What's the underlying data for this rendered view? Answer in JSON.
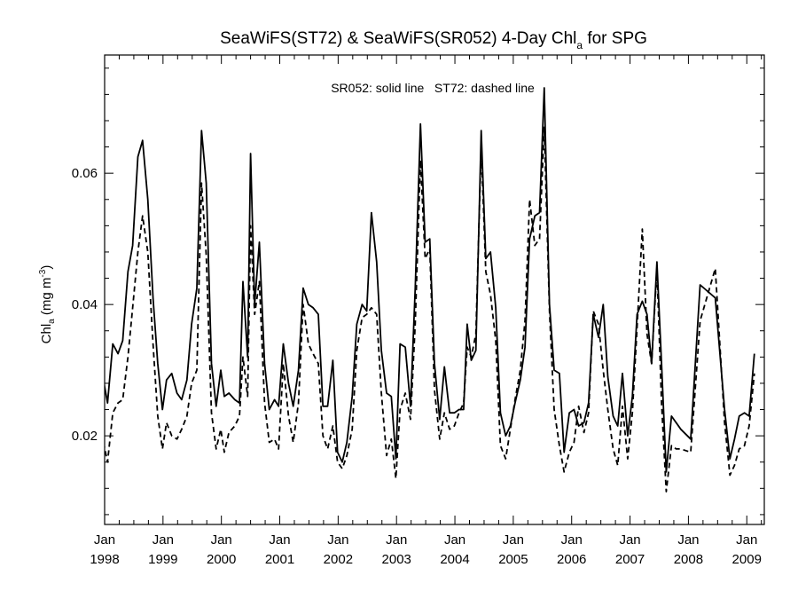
{
  "chart_data": {
    "type": "line",
    "title_main": "SeaWiFS(ST72) & SeaWiFS(SR052) 4-Day Chl",
    "title_sub": "a",
    "title_end": " for SPG",
    "ylabel_main": "Chl",
    "ylabel_sub": "a",
    "ylabel_unit_pre": " (mg m",
    "ylabel_unit_sup": "-3",
    "ylabel_unit_post": ")",
    "annotation": "SR052: solid line   ST72: dashed line",
    "xlim": [
      1998.0,
      2009.3
    ],
    "ylim": [
      0.0065,
      0.078
    ],
    "y_ticks": [
      0.02,
      0.04,
      0.06
    ],
    "y_tick_labels": [
      "0.02",
      "0.04",
      "0.06"
    ],
    "x_ticks": [
      {
        "value": 1998,
        "month": "Jan",
        "year": "1998"
      },
      {
        "value": 1999,
        "month": "Jan",
        "year": "1999"
      },
      {
        "value": 2000,
        "month": "Jan",
        "year": "2000"
      },
      {
        "value": 2001,
        "month": "Jan",
        "year": "2001"
      },
      {
        "value": 2002,
        "month": "Jan",
        "year": "2002"
      },
      {
        "value": 2003,
        "month": "Jan",
        "year": "2003"
      },
      {
        "value": 2004,
        "month": "Jan",
        "year": "2004"
      },
      {
        "value": 2005,
        "month": "Jan",
        "year": "2005"
      },
      {
        "value": 2006,
        "month": "Jan",
        "year": "2006"
      },
      {
        "value": 2007,
        "month": "Jan",
        "year": "2007"
      },
      {
        "value": 2008,
        "month": "Jan",
        "year": "2008"
      },
      {
        "value": 2009,
        "month": "Jan",
        "year": "2009"
      }
    ],
    "series": [
      {
        "name": "SR052",
        "style": "solid",
        "color": "#000000",
        "points": [
          [
            1997.98,
            0.0285
          ],
          [
            1998.05,
            0.025
          ],
          [
            1998.14,
            0.034
          ],
          [
            1998.23,
            0.0325
          ],
          [
            1998.31,
            0.0345
          ],
          [
            1998.4,
            0.045
          ],
          [
            1998.48,
            0.049
          ],
          [
            1998.57,
            0.0625
          ],
          [
            1998.65,
            0.065
          ],
          [
            1998.74,
            0.056
          ],
          [
            1998.83,
            0.041
          ],
          [
            1998.91,
            0.031
          ],
          [
            1998.99,
            0.024
          ],
          [
            1999.06,
            0.0285
          ],
          [
            1999.15,
            0.0295
          ],
          [
            1999.24,
            0.0265
          ],
          [
            1999.32,
            0.0255
          ],
          [
            1999.41,
            0.0285
          ],
          [
            1999.49,
            0.037
          ],
          [
            1999.58,
            0.0425
          ],
          [
            1999.66,
            0.0665
          ],
          [
            1999.74,
            0.0585
          ],
          [
            1999.83,
            0.031
          ],
          [
            1999.91,
            0.0245
          ],
          [
            1999.99,
            0.03
          ],
          [
            2000.05,
            0.026
          ],
          [
            2000.13,
            0.0265
          ],
          [
            2000.23,
            0.0255
          ],
          [
            2000.31,
            0.025
          ],
          [
            2000.37,
            0.0435
          ],
          [
            2000.45,
            0.032
          ],
          [
            2000.5,
            0.063
          ],
          [
            2000.57,
            0.04
          ],
          [
            2000.65,
            0.0495
          ],
          [
            2000.74,
            0.031
          ],
          [
            2000.82,
            0.024
          ],
          [
            2000.91,
            0.0255
          ],
          [
            2000.98,
            0.0245
          ],
          [
            2001.06,
            0.034
          ],
          [
            2001.15,
            0.028
          ],
          [
            2001.23,
            0.0245
          ],
          [
            2001.32,
            0.03
          ],
          [
            2001.4,
            0.0425
          ],
          [
            2001.49,
            0.04
          ],
          [
            2001.57,
            0.0395
          ],
          [
            2001.66,
            0.0385
          ],
          [
            2001.74,
            0.0245
          ],
          [
            2001.82,
            0.0245
          ],
          [
            2001.91,
            0.0315
          ],
          [
            2001.99,
            0.0175
          ],
          [
            2002.07,
            0.016
          ],
          [
            2002.15,
            0.019
          ],
          [
            2002.24,
            0.026
          ],
          [
            2002.32,
            0.037
          ],
          [
            2002.41,
            0.04
          ],
          [
            2002.49,
            0.039
          ],
          [
            2002.57,
            0.054
          ],
          [
            2002.66,
            0.0465
          ],
          [
            2002.74,
            0.033
          ],
          [
            2002.83,
            0.0265
          ],
          [
            2002.91,
            0.026
          ],
          [
            2002.99,
            0.0165
          ],
          [
            2003.06,
            0.034
          ],
          [
            2003.15,
            0.0335
          ],
          [
            2003.24,
            0.0245
          ],
          [
            2003.32,
            0.0425
          ],
          [
            2003.41,
            0.0675
          ],
          [
            2003.49,
            0.0495
          ],
          [
            2003.57,
            0.05
          ],
          [
            2003.65,
            0.031
          ],
          [
            2003.74,
            0.0225
          ],
          [
            2003.82,
            0.0305
          ],
          [
            2003.91,
            0.0235
          ],
          [
            2003.99,
            0.0235
          ],
          [
            2004.07,
            0.024
          ],
          [
            2004.15,
            0.024
          ],
          [
            2004.21,
            0.037
          ],
          [
            2004.28,
            0.0315
          ],
          [
            2004.36,
            0.033
          ],
          [
            2004.45,
            0.0665
          ],
          [
            2004.53,
            0.047
          ],
          [
            2004.61,
            0.048
          ],
          [
            2004.7,
            0.0395
          ],
          [
            2004.78,
            0.0235
          ],
          [
            2004.87,
            0.02
          ],
          [
            2004.95,
            0.0215
          ],
          [
            2005.03,
            0.025
          ],
          [
            2005.12,
            0.0285
          ],
          [
            2005.2,
            0.0335
          ],
          [
            2005.28,
            0.05
          ],
          [
            2005.37,
            0.0535
          ],
          [
            2005.45,
            0.054
          ],
          [
            2005.53,
            0.073
          ],
          [
            2005.62,
            0.04
          ],
          [
            2005.7,
            0.03
          ],
          [
            2005.79,
            0.0295
          ],
          [
            2005.87,
            0.0175
          ],
          [
            2005.96,
            0.0235
          ],
          [
            2006.04,
            0.024
          ],
          [
            2006.12,
            0.0215
          ],
          [
            2006.21,
            0.022
          ],
          [
            2006.29,
            0.025
          ],
          [
            2006.37,
            0.0385
          ],
          [
            2006.46,
            0.035
          ],
          [
            2006.54,
            0.04
          ],
          [
            2006.62,
            0.029
          ],
          [
            2006.71,
            0.023
          ],
          [
            2006.79,
            0.0215
          ],
          [
            2006.87,
            0.0295
          ],
          [
            2006.96,
            0.02
          ],
          [
            2007.04,
            0.026
          ],
          [
            2007.12,
            0.0385
          ],
          [
            2007.21,
            0.0405
          ],
          [
            2007.29,
            0.0385
          ],
          [
            2007.37,
            0.031
          ],
          [
            2007.46,
            0.0465
          ],
          [
            2007.54,
            0.031
          ],
          [
            2007.62,
            0.0145
          ],
          [
            2007.71,
            0.023
          ],
          [
            2007.79,
            0.022
          ],
          [
            2007.87,
            0.021
          ],
          [
            2008.04,
            0.0195
          ],
          [
            2008.2,
            0.043
          ],
          [
            2008.46,
            0.041
          ],
          [
            2008.62,
            0.024
          ],
          [
            2008.71,
            0.0165
          ],
          [
            2008.79,
            0.0195
          ],
          [
            2008.87,
            0.023
          ],
          [
            2008.96,
            0.0235
          ],
          [
            2009.04,
            0.023
          ],
          [
            2009.13,
            0.0325
          ]
        ]
      },
      {
        "name": "ST72",
        "style": "dashed",
        "color": "#000000",
        "points": [
          [
            1997.98,
            0.019
          ],
          [
            1998.05,
            0.016
          ],
          [
            1998.14,
            0.0235
          ],
          [
            1998.23,
            0.025
          ],
          [
            1998.31,
            0.0255
          ],
          [
            1998.4,
            0.032
          ],
          [
            1998.48,
            0.0395
          ],
          [
            1998.57,
            0.048
          ],
          [
            1998.65,
            0.0535
          ],
          [
            1998.74,
            0.048
          ],
          [
            1998.83,
            0.034
          ],
          [
            1998.91,
            0.023
          ],
          [
            1998.99,
            0.018
          ],
          [
            1999.06,
            0.022
          ],
          [
            1999.15,
            0.02
          ],
          [
            1999.24,
            0.0195
          ],
          [
            1999.32,
            0.021
          ],
          [
            1999.41,
            0.023
          ],
          [
            1999.49,
            0.028
          ],
          [
            1999.58,
            0.03
          ],
          [
            1999.66,
            0.0585
          ],
          [
            1999.74,
            0.0475
          ],
          [
            1999.83,
            0.0235
          ],
          [
            1999.91,
            0.018
          ],
          [
            1999.99,
            0.021
          ],
          [
            2000.05,
            0.0175
          ],
          [
            2000.13,
            0.0205
          ],
          [
            2000.23,
            0.0215
          ],
          [
            2000.31,
            0.023
          ],
          [
            2000.37,
            0.032
          ],
          [
            2000.45,
            0.026
          ],
          [
            2000.5,
            0.052
          ],
          [
            2000.57,
            0.0385
          ],
          [
            2000.65,
            0.0435
          ],
          [
            2000.74,
            0.025
          ],
          [
            2000.82,
            0.019
          ],
          [
            2000.91,
            0.0195
          ],
          [
            2000.98,
            0.018
          ],
          [
            2001.06,
            0.031
          ],
          [
            2001.15,
            0.023
          ],
          [
            2001.23,
            0.019
          ],
          [
            2001.32,
            0.025
          ],
          [
            2001.4,
            0.04
          ],
          [
            2001.49,
            0.034
          ],
          [
            2001.57,
            0.0325
          ],
          [
            2001.66,
            0.031
          ],
          [
            2001.74,
            0.02
          ],
          [
            2001.82,
            0.018
          ],
          [
            2001.91,
            0.0215
          ],
          [
            2001.99,
            0.016
          ],
          [
            2002.07,
            0.015
          ],
          [
            2002.15,
            0.017
          ],
          [
            2002.24,
            0.021
          ],
          [
            2002.32,
            0.033
          ],
          [
            2002.41,
            0.038
          ],
          [
            2002.49,
            0.0385
          ],
          [
            2002.57,
            0.0395
          ],
          [
            2002.66,
            0.0385
          ],
          [
            2002.74,
            0.0265
          ],
          [
            2002.83,
            0.017
          ],
          [
            2002.91,
            0.0195
          ],
          [
            2002.99,
            0.0135
          ],
          [
            2003.06,
            0.024
          ],
          [
            2003.15,
            0.0265
          ],
          [
            2003.24,
            0.0225
          ],
          [
            2003.32,
            0.037
          ],
          [
            2003.41,
            0.062
          ],
          [
            2003.49,
            0.047
          ],
          [
            2003.57,
            0.0485
          ],
          [
            2003.65,
            0.027
          ],
          [
            2003.74,
            0.0195
          ],
          [
            2003.82,
            0.0235
          ],
          [
            2003.91,
            0.021
          ],
          [
            2003.99,
            0.0215
          ],
          [
            2004.07,
            0.0235
          ],
          [
            2004.15,
            0.025
          ],
          [
            2004.21,
            0.0335
          ],
          [
            2004.28,
            0.032
          ],
          [
            2004.36,
            0.0355
          ],
          [
            2004.45,
            0.064
          ],
          [
            2004.53,
            0.045
          ],
          [
            2004.61,
            0.0415
          ],
          [
            2004.7,
            0.0345
          ],
          [
            2004.78,
            0.0185
          ],
          [
            2004.87,
            0.0165
          ],
          [
            2004.95,
            0.021
          ],
          [
            2005.03,
            0.0255
          ],
          [
            2005.12,
            0.03
          ],
          [
            2005.2,
            0.0375
          ],
          [
            2005.28,
            0.056
          ],
          [
            2005.37,
            0.049
          ],
          [
            2005.45,
            0.05
          ],
          [
            2005.53,
            0.067
          ],
          [
            2005.62,
            0.039
          ],
          [
            2005.7,
            0.024
          ],
          [
            2005.79,
            0.0185
          ],
          [
            2005.87,
            0.0145
          ],
          [
            2005.96,
            0.0175
          ],
          [
            2006.04,
            0.019
          ],
          [
            2006.12,
            0.0245
          ],
          [
            2006.21,
            0.0205
          ],
          [
            2006.29,
            0.0235
          ],
          [
            2006.37,
            0.039
          ],
          [
            2006.46,
            0.037
          ],
          [
            2006.54,
            0.03
          ],
          [
            2006.62,
            0.024
          ],
          [
            2006.71,
            0.018
          ],
          [
            2006.79,
            0.0155
          ],
          [
            2006.87,
            0.0245
          ],
          [
            2006.96,
            0.0165
          ],
          [
            2007.04,
            0.0235
          ],
          [
            2007.12,
            0.0365
          ],
          [
            2007.21,
            0.0515
          ],
          [
            2007.29,
            0.0355
          ],
          [
            2007.37,
            0.031
          ],
          [
            2007.46,
            0.0455
          ],
          [
            2007.54,
            0.025
          ],
          [
            2007.62,
            0.0115
          ],
          [
            2007.71,
            0.0185
          ],
          [
            2007.79,
            0.018
          ],
          [
            2007.87,
            0.018
          ],
          [
            2008.04,
            0.0175
          ],
          [
            2008.2,
            0.0375
          ],
          [
            2008.46,
            0.0455
          ],
          [
            2008.62,
            0.022
          ],
          [
            2008.71,
            0.014
          ],
          [
            2008.79,
            0.0155
          ],
          [
            2008.87,
            0.018
          ],
          [
            2008.96,
            0.0185
          ],
          [
            2009.04,
            0.0215
          ],
          [
            2009.13,
            0.0295
          ]
        ]
      }
    ]
  }
}
